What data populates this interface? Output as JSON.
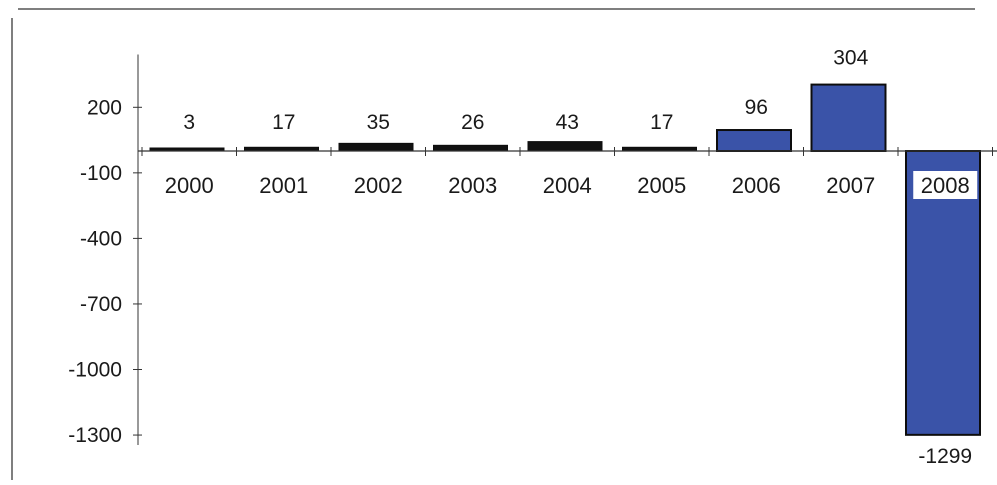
{
  "chart_data": {
    "type": "bar",
    "title": "",
    "xlabel": "",
    "ylabel": "",
    "categories": [
      "2000",
      "2001",
      "2002",
      "2003",
      "2004",
      "2005",
      "2006",
      "2007",
      "2008"
    ],
    "values": [
      3,
      17,
      35,
      26,
      43,
      17,
      96,
      304,
      -1299
    ],
    "value_labels": [
      "3",
      "17",
      "35",
      "26",
      "43",
      "17",
      "96",
      "304",
      "-1299"
    ],
    "yticks": [
      200,
      -100,
      -400,
      -700,
      -1000,
      -1300
    ],
    "ytick_labels": [
      "200",
      "-100",
      "-400",
      "-700",
      "-1000",
      "-1300"
    ],
    "ylim": [
      -1300,
      350
    ],
    "grid": false,
    "legend": "none",
    "colors": {
      "positive_bar": "#3a53a8",
      "small_bar": "#111111",
      "bar_edge": "#0d0d0d",
      "axis": "#333333",
      "frame": "#555555"
    }
  }
}
